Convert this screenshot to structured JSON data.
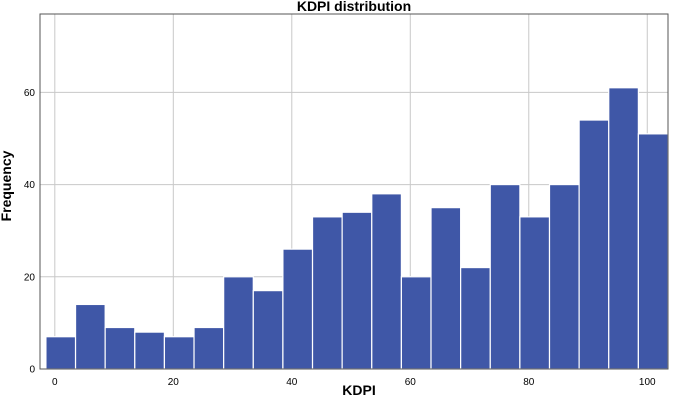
{
  "chart_data": {
    "type": "bar",
    "title": "KDPI distribution",
    "xlabel": "KDPI",
    "ylabel": "Frequency",
    "xlim": [
      -2.5,
      103.5
    ],
    "ylim": [
      0,
      77
    ],
    "xticks": [
      0,
      20,
      40,
      60,
      80,
      100
    ],
    "yticks": [
      0,
      20,
      40,
      60
    ],
    "grid": true,
    "bin_width": 5,
    "bins": [
      {
        "x0": -1.5,
        "x1": 3.5,
        "value": 7
      },
      {
        "x0": 3.5,
        "x1": 8.5,
        "value": 14
      },
      {
        "x0": 8.5,
        "x1": 13.5,
        "value": 9
      },
      {
        "x0": 13.5,
        "x1": 18.5,
        "value": 8
      },
      {
        "x0": 18.5,
        "x1": 23.5,
        "value": 7
      },
      {
        "x0": 23.5,
        "x1": 28.5,
        "value": 9
      },
      {
        "x0": 28.5,
        "x1": 33.5,
        "value": 20
      },
      {
        "x0": 33.5,
        "x1": 38.5,
        "value": 17
      },
      {
        "x0": 38.5,
        "x1": 43.5,
        "value": 26
      },
      {
        "x0": 43.5,
        "x1": 48.5,
        "value": 33
      },
      {
        "x0": 48.5,
        "x1": 53.5,
        "value": 34
      },
      {
        "x0": 53.5,
        "x1": 58.5,
        "value": 38
      },
      {
        "x0": 58.5,
        "x1": 63.5,
        "value": 20
      },
      {
        "x0": 63.5,
        "x1": 68.5,
        "value": 35
      },
      {
        "x0": 68.5,
        "x1": 73.5,
        "value": 22
      },
      {
        "x0": 73.5,
        "x1": 78.5,
        "value": 40
      },
      {
        "x0": 78.5,
        "x1": 83.5,
        "value": 33
      },
      {
        "x0": 83.5,
        "x1": 88.5,
        "value": 40
      },
      {
        "x0": 88.5,
        "x1": 93.5,
        "value": 54
      },
      {
        "x0": 93.5,
        "x1": 98.5,
        "value": 61
      },
      {
        "x0": 98.5,
        "x1": 103.5,
        "value": 51
      }
    ],
    "bar_color": "#3f57a7"
  }
}
